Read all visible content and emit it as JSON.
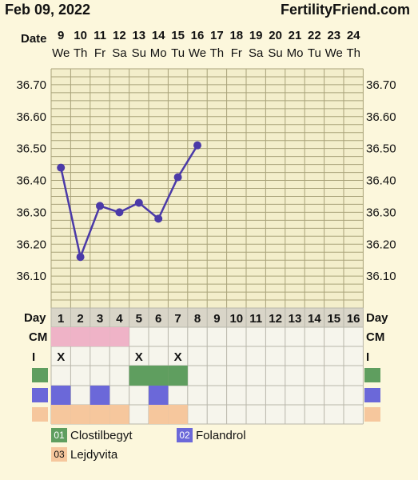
{
  "header": {
    "date": "Feb 09, 2022",
    "site": "FertilityFriend.com"
  },
  "colors": {
    "line": "#4b3aa8",
    "grid": "#a9a37a",
    "plot_bg": "#f3eecb",
    "grid_bg": "#f6f5ec",
    "cm": "#efb3c7",
    "med01": "#5f9e5f",
    "med02": "#6b68d9",
    "med03": "#f6c79d"
  },
  "rows": {
    "date_label": "Date",
    "day_label": "Day",
    "cm_label": "CM",
    "i_label": "I"
  },
  "chart_data": {
    "type": "line",
    "dates": [
      "9",
      "10",
      "11",
      "12",
      "13",
      "14",
      "15",
      "16",
      "17",
      "18",
      "19",
      "20",
      "21",
      "22",
      "23",
      "24"
    ],
    "weekdays": [
      "We",
      "Th",
      "Fr",
      "Sa",
      "Su",
      "Mo",
      "Tu",
      "We",
      "Th",
      "Fr",
      "Sa",
      "Su",
      "Mo",
      "Tu",
      "We",
      "Th"
    ],
    "days": [
      1,
      2,
      3,
      4,
      5,
      6,
      7,
      8,
      9,
      10,
      11,
      12,
      13,
      14,
      15,
      16
    ],
    "y_ticks": [
      "36.70",
      "36.60",
      "36.50",
      "36.40",
      "36.30",
      "36.20",
      "36.10"
    ],
    "ylim": [
      36.0,
      36.75
    ],
    "series": [
      {
        "x": [
          1,
          2,
          3,
          4,
          5,
          6,
          7,
          8
        ],
        "values": [
          36.44,
          36.16,
          36.32,
          36.3,
          36.33,
          36.28,
          36.41,
          36.51
        ]
      }
    ],
    "cm_days": [
      1,
      2,
      3,
      4
    ],
    "intercourse": {
      "days": [
        1,
        5,
        7
      ],
      "mark": "X"
    },
    "medications": [
      {
        "code": "01",
        "name": "Clostilbegyt",
        "days": [
          5,
          6,
          7
        ]
      },
      {
        "code": "02",
        "name": "Folandrol",
        "days": [
          1,
          3,
          6
        ]
      },
      {
        "code": "03",
        "name": "Lejdyvita",
        "days": [
          1,
          2,
          3,
          4,
          6,
          7
        ]
      }
    ]
  }
}
